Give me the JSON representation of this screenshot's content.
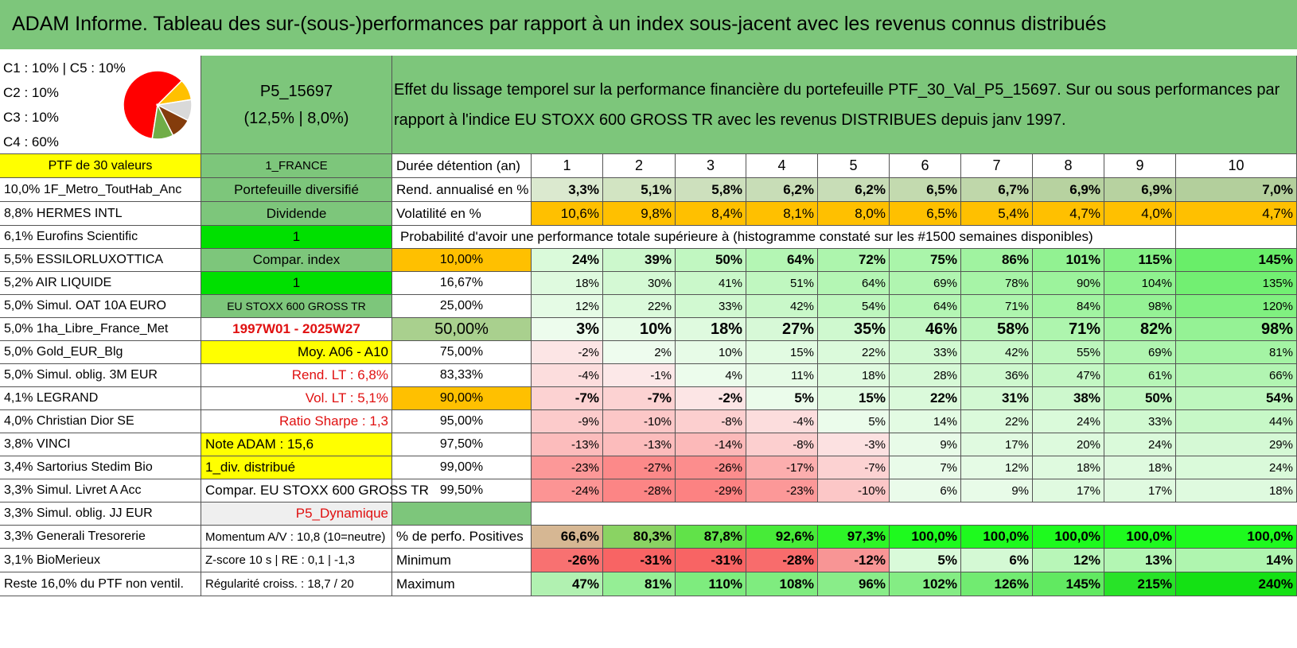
{
  "title": "ADAM Informe. Tableau des sur-(sous-)performances par rapport à un index sous-jacent avec les revenus connus distribués",
  "legend": {
    "lines": [
      "C1 : 10% | C5 : 10%",
      "C2 : 10%",
      "C3 : 10%",
      "C4 : 60%"
    ],
    "pie_shares": [
      60,
      10,
      10,
      10,
      10
    ],
    "pie_colors": [
      "#ff0000",
      "#ffc000",
      "#d9d9d9",
      "#843c0c",
      "#70ad47"
    ]
  },
  "portfolio": {
    "name": "P5_15697",
    "params": "(12,5% | 8,0%)"
  },
  "description": "Effet du lissage temporel sur la performance financière du portefeuille PTF_30_Val_P5_15697. Sur ou sous performances par rapport à l'indice EU STOXX 600 GROSS TR avec les revenus DISTRIBUES depuis janv 1997.",
  "holdings_header": "PTF de 30 valeurs",
  "country": "1_FRANCE",
  "holdings": [
    "10,0% 1F_Metro_ToutHab_Anc",
    "8,8% HERMES INTL",
    "6,1% Eurofins Scientific",
    "5,5% ESSILORLUXOTTICA",
    "5,2% AIR LIQUIDE",
    "5,0% Simul. OAT 10A EURO",
    "5,0% 1ha_Libre_France_Met",
    "5,0% Gold_EUR_Blg",
    "5,0% Simul. oblig. 3M EUR",
    "4,1% LEGRAND",
    "4,0% Christian Dior SE",
    "3,8% VINCI",
    "3,4% Sartorius Stedim Bio",
    "3,3% Simul. Livret A Acc",
    "3,3% Simul. oblig. JJ EUR",
    "3,3% Generali Tresorerie",
    "3,1% BioMerieux",
    "Reste 16,0% du PTF non ventil."
  ],
  "info": [
    "Portefeuille diversifié",
    "Dividende",
    "1",
    "Compar. index",
    "1",
    "EU STOXX 600 GROSS TR",
    "1997W01 - 2025W27",
    "Moy. A06 - A10",
    "Rend. LT : 6,8%",
    "Vol. LT : 5,1%",
    "Ratio Sharpe : 1,3",
    "Note ADAM : 15,6",
    "1_div. distribué",
    "Compar. EU STOXX 600 GROSS TR",
    "P5_Dynamique",
    "Momentum A/V : 10,8 (10=neutre)",
    "Z-score 10 s | RE : 0,1 | -1,3",
    "Régularité croiss. : 18,7 / 20"
  ],
  "duration_label": "Durée détention (an)",
  "years": [
    "1",
    "2",
    "3",
    "4",
    "5",
    "6",
    "7",
    "8",
    "9",
    "10"
  ],
  "rend_label": "Rend. annualisé en %",
  "rend": [
    "3,3%",
    "5,1%",
    "5,8%",
    "6,2%",
    "6,2%",
    "6,5%",
    "6,7%",
    "6,9%",
    "6,9%",
    "7,0%"
  ],
  "vol_label": "Volatilité en %",
  "vol": [
    "10,6%",
    "9,8%",
    "8,4%",
    "8,1%",
    "8,0%",
    "6,5%",
    "5,4%",
    "4,7%",
    "4,0%",
    "4,7%"
  ],
  "prob_title": "Probabilité d'avoir une performance totale supérieure à (histogramme constaté sur les #1500 semaines disponibles)",
  "prob": [
    {
      "p": "10,00%",
      "v": [
        "24%",
        "39%",
        "50%",
        "64%",
        "72%",
        "75%",
        "86%",
        "101%",
        "115%",
        "145%"
      ]
    },
    {
      "p": "16,67%",
      "v": [
        "18%",
        "30%",
        "41%",
        "51%",
        "64%",
        "69%",
        "78%",
        "90%",
        "104%",
        "135%"
      ]
    },
    {
      "p": "25,00%",
      "v": [
        "12%",
        "22%",
        "33%",
        "42%",
        "54%",
        "64%",
        "71%",
        "84%",
        "98%",
        "120%"
      ]
    },
    {
      "p": "50,00%",
      "v": [
        "3%",
        "10%",
        "18%",
        "27%",
        "35%",
        "46%",
        "58%",
        "71%",
        "82%",
        "98%"
      ]
    },
    {
      "p": "75,00%",
      "v": [
        "-2%",
        "2%",
        "10%",
        "15%",
        "22%",
        "33%",
        "42%",
        "55%",
        "69%",
        "81%"
      ]
    },
    {
      "p": "83,33%",
      "v": [
        "-4%",
        "-1%",
        "4%",
        "11%",
        "18%",
        "28%",
        "36%",
        "47%",
        "61%",
        "66%"
      ]
    },
    {
      "p": "90,00%",
      "v": [
        "-7%",
        "-7%",
        "-2%",
        "5%",
        "15%",
        "22%",
        "31%",
        "38%",
        "50%",
        "54%"
      ]
    },
    {
      "p": "95,00%",
      "v": [
        "-9%",
        "-10%",
        "-8%",
        "-4%",
        "5%",
        "14%",
        "22%",
        "24%",
        "33%",
        "44%"
      ]
    },
    {
      "p": "97,50%",
      "v": [
        "-13%",
        "-13%",
        "-14%",
        "-8%",
        "-3%",
        "9%",
        "17%",
        "20%",
        "24%",
        "29%"
      ]
    },
    {
      "p": "99,00%",
      "v": [
        "-23%",
        "-27%",
        "-26%",
        "-17%",
        "-7%",
        "7%",
        "12%",
        "18%",
        "18%",
        "24%"
      ]
    },
    {
      "p": "99,50%",
      "v": [
        "-24%",
        "-28%",
        "-29%",
        "-23%",
        "-10%",
        "6%",
        "9%",
        "17%",
        "17%",
        "18%"
      ]
    }
  ],
  "pos_label": "% de perfo. Positives",
  "pos": [
    "66,6%",
    "80,3%",
    "87,8%",
    "92,6%",
    "97,3%",
    "100,0%",
    "100,0%",
    "100,0%",
    "100,0%",
    "100,0%"
  ],
  "min_label": "Minimum",
  "min": [
    "-26%",
    "-31%",
    "-31%",
    "-28%",
    "-12%",
    "5%",
    "6%",
    "12%",
    "13%",
    "14%"
  ],
  "max_label": "Maximum",
  "max": [
    "47%",
    "81%",
    "110%",
    "108%",
    "96%",
    "102%",
    "126%",
    "145%",
    "215%",
    "240%"
  ]
}
